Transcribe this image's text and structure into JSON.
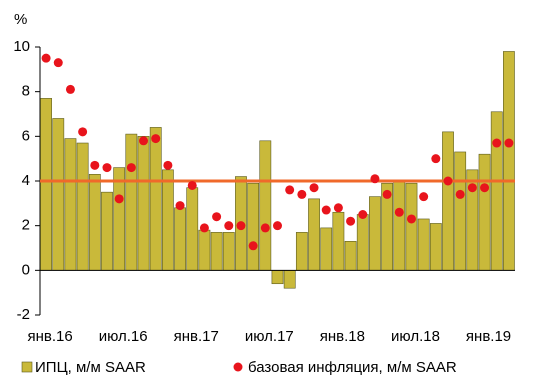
{
  "chart_data": {
    "type": "bar_dots",
    "y_label": "%",
    "categories": [
      "янв.16",
      null,
      null,
      null,
      null,
      null,
      "июл.16",
      null,
      null,
      null,
      null,
      null,
      "янв.17",
      null,
      null,
      null,
      null,
      null,
      "июл.17",
      null,
      null,
      null,
      null,
      null,
      "янв.18",
      null,
      null,
      null,
      null,
      null,
      "июл.18",
      null,
      null,
      null,
      null,
      null,
      "янв.19",
      null,
      null
    ],
    "series": [
      {
        "name": "ИПЦ, м/м SAAR",
        "color": "#c9b93a",
        "kind": "bar",
        "values": [
          7.7,
          6.8,
          5.9,
          5.7,
          4.3,
          3.5,
          4.6,
          6.1,
          6.0,
          6.4,
          4.5,
          2.8,
          3.7,
          1.8,
          1.7,
          1.7,
          4.2,
          3.9,
          5.8,
          -0.6,
          -0.8,
          1.7,
          3.2,
          1.9,
          2.6,
          1.3,
          2.5,
          3.3,
          3.9,
          4.0,
          3.9,
          2.3,
          2.1,
          6.2,
          5.3,
          4.5,
          5.2,
          7.1,
          9.8
        ]
      },
      {
        "name": "базовая инфляция, м/м SAAR",
        "color": "#e8141c",
        "kind": "dot",
        "values": [
          9.5,
          9.3,
          8.1,
          6.2,
          4.7,
          4.6,
          3.2,
          4.6,
          5.8,
          5.9,
          4.7,
          2.9,
          3.8,
          1.9,
          2.4,
          2.0,
          2.0,
          1.1,
          1.9,
          2.0,
          3.6,
          3.4,
          3.7,
          2.7,
          2.8,
          2.2,
          2.5,
          4.1,
          3.4,
          2.6,
          2.3,
          3.3,
          5.0,
          4.0,
          3.4,
          3.7,
          3.7,
          5.7,
          5.7
        ]
      }
    ],
    "hline": 4,
    "hline_color": "#f0692a",
    "ylim": [
      -2,
      10
    ],
    "yticks": [
      -2,
      0,
      2,
      4,
      6,
      8,
      10
    ]
  }
}
